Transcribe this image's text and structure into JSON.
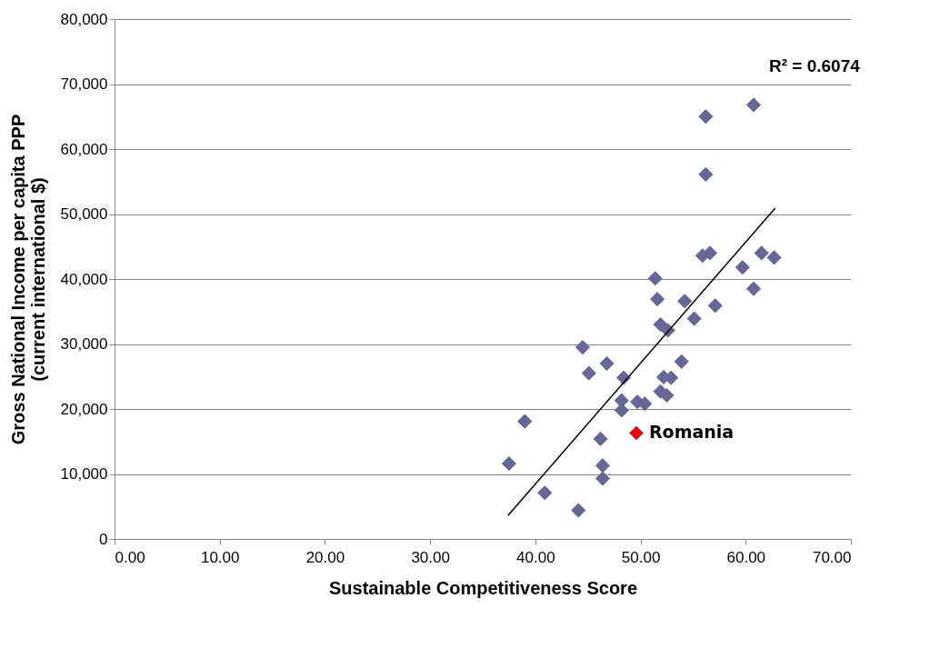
{
  "chart_data": {
    "type": "scatter",
    "xlabel": "Sustainable Competitiveness Score",
    "ylabel": "Gross National Income per capita PPP\n(current international $)",
    "xlim": [
      0,
      70
    ],
    "ylim": [
      0,
      80000
    ],
    "xticks": [
      {
        "value": 0,
        "label": "0.00"
      },
      {
        "value": 10,
        "label": "10.00"
      },
      {
        "value": 20,
        "label": "20.00"
      },
      {
        "value": 30,
        "label": "30.00"
      },
      {
        "value": 40,
        "label": "40.00"
      },
      {
        "value": 50,
        "label": "50.00"
      },
      {
        "value": 60,
        "label": "60.00"
      },
      {
        "value": 70,
        "label": "70.00"
      }
    ],
    "yticks": [
      0,
      {
        "value": 10000,
        "label": "10,000"
      },
      {
        "value": 20000,
        "label": "20,000"
      },
      {
        "value": 30000,
        "label": "30,000"
      },
      {
        "value": 40000,
        "label": "40,000"
      },
      {
        "value": 50000,
        "label": "50,000"
      },
      {
        "value": 60000,
        "label": "60,000"
      },
      {
        "value": 70000,
        "label": "70,000"
      },
      {
        "value": 80000,
        "label": "80,000"
      }
    ],
    "grid": "y",
    "marker": "diamond",
    "annotations": [
      "R² = 0.6074"
    ],
    "series": [
      {
        "color": "#666699",
        "x": [
          60.75,
          56.2,
          56.2,
          55.9,
          56.6,
          61.5,
          62.7,
          59.7,
          60.75,
          51.4,
          51.6,
          54.2,
          57.1,
          55.1,
          51.9,
          52.6,
          44.5,
          53.9,
          46.8,
          45.1,
          48.4,
          52.2,
          52.9,
          51.9,
          52.5,
          48.2,
          49.7,
          50.4,
          48.2,
          39.0,
          46.2,
          37.5,
          46.4,
          46.4,
          40.9,
          44.1
        ],
        "values": [
          66800,
          65000,
          56100,
          43600,
          44000,
          44000,
          43300,
          41800,
          38500,
          40100,
          36900,
          36600,
          35900,
          33900,
          33000,
          32100,
          29500,
          27300,
          27000,
          25500,
          24800,
          24900,
          24800,
          22700,
          22100,
          21300,
          21100,
          20800,
          19800,
          18100,
          15400,
          11600,
          11300,
          9300,
          7100,
          4400
        ]
      },
      {
        "name": "Romania",
        "color": "#ff0000",
        "x": [
          49.6
        ],
        "values": [
          16300
        ]
      },
      {
        "type": "line",
        "marker": "none",
        "color": "#000000",
        "x": [
          37.4,
          62.8
        ],
        "values": [
          3600,
          50900
        ]
      }
    ]
  }
}
